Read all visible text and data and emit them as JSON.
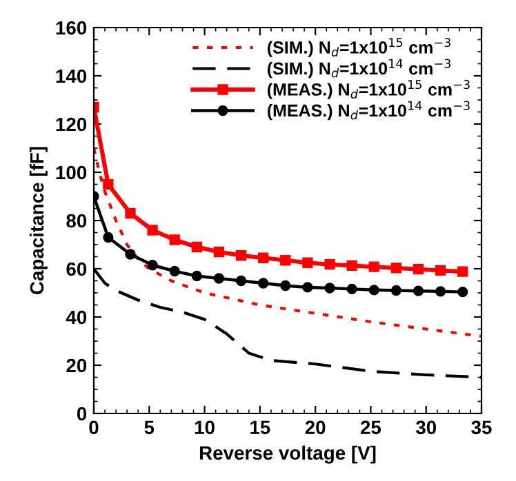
{
  "chart_data": {
    "type": "line",
    "xlabel": "Reverse voltage [V]",
    "ylabel": "Capacitance [fF]",
    "xlim": [
      0,
      35
    ],
    "ylim": [
      0,
      160
    ],
    "xticks": [
      0,
      5,
      10,
      15,
      20,
      25,
      30,
      35
    ],
    "yticks": [
      0,
      20,
      40,
      60,
      80,
      100,
      120,
      140,
      160
    ],
    "grid": false,
    "legend": "top right",
    "series": [
      {
        "name": "(SIM.) N$_{d}$=1x10$^{15}$ cm$^{−3}$",
        "color": "#ff0000",
        "line_style": "dotted",
        "marker": "none",
        "x": [
          0,
          0.5,
          1,
          2,
          3,
          4,
          5,
          7,
          10,
          15,
          20,
          25,
          30,
          35
        ],
        "values": [
          110,
          100,
          92,
          80,
          70,
          64,
          60,
          55,
          50,
          45,
          41.5,
          38,
          35,
          32
        ]
      },
      {
        "name": "(SIM.) N$_{d}$=1x10$^{14}$ cm$^{−3}$",
        "color": "#000000",
        "line_style": "dashed",
        "marker": "none",
        "x": [
          0,
          1,
          2,
          4,
          6,
          8,
          10,
          12,
          14,
          16,
          20,
          25,
          30,
          35
        ],
        "values": [
          60,
          54,
          51,
          47,
          44,
          42,
          39,
          33,
          25,
          22,
          20.5,
          17.5,
          16,
          15
        ]
      },
      {
        "name": "(MEAS.) N$_{d}$=1x10$^{15}$ cm$^{−3}$",
        "color": "#ff0000",
        "line_style": "solid",
        "marker": "square",
        "x": [
          0,
          1.3,
          3.3,
          5.3,
          7.3,
          9.3,
          11.3,
          13.3,
          15.3,
          17.3,
          19.3,
          21.3,
          23.3,
          25.3,
          27.3,
          29.3,
          31.3,
          33.3
        ],
        "values": [
          127,
          95,
          83,
          76,
          72,
          69,
          67,
          65.5,
          64.5,
          63.5,
          62.5,
          61.8,
          61.3,
          60.8,
          60.3,
          59.8,
          59.3,
          58.8
        ]
      },
      {
        "name": "(MEAS.) N$_{d}$=1x10$^{14}$ cm$^{−3}$",
        "color": "#000000",
        "line_style": "solid",
        "marker": "circle",
        "x": [
          0,
          1.3,
          3.3,
          5.3,
          7.3,
          9.3,
          11.3,
          13.3,
          15.3,
          17.3,
          19.3,
          21.3,
          23.3,
          25.3,
          27.3,
          29.3,
          31.3,
          33.3
        ],
        "values": [
          90,
          73,
          66,
          61.5,
          59,
          57,
          56,
          55,
          54,
          53,
          52.3,
          52,
          51.6,
          51.2,
          51,
          50.8,
          50.6,
          50.4
        ]
      }
    ]
  }
}
